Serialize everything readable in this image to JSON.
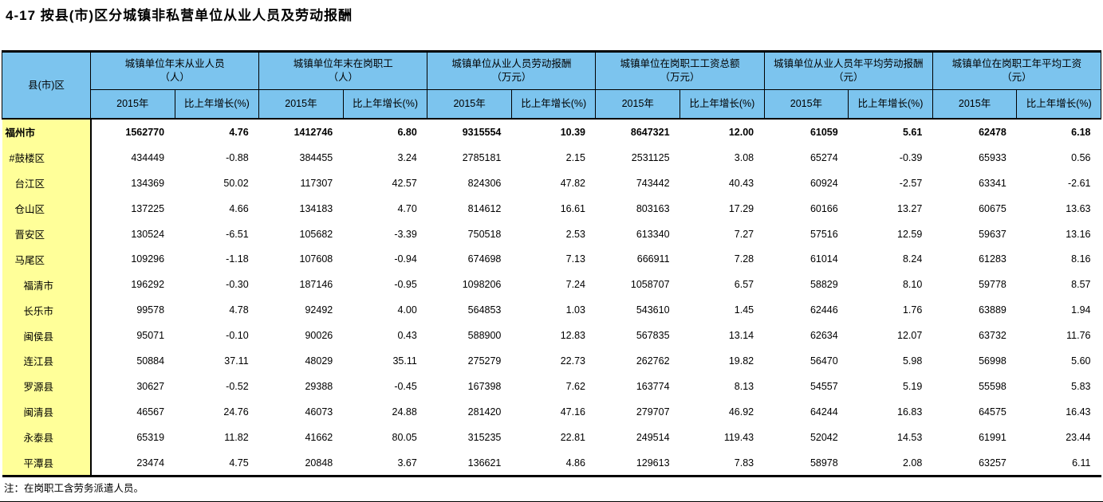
{
  "title": "4-17 按县(市)区分城镇非私营单位从业人员及劳动报酬",
  "note": "注：在岗职工含劳务派遣人员。",
  "colors": {
    "header_bg": "#7CC4EE",
    "label_bg": "#FFFF99",
    "border": "#000000"
  },
  "table": {
    "corner_header": "县(市)区",
    "groups": [
      {
        "name": "城镇单位年末从业人员",
        "unit": "（人）"
      },
      {
        "name": "城镇单位年末在岗职工",
        "unit": "（人）"
      },
      {
        "name": "城镇单位从业人员劳动报酬",
        "unit": "（万元）"
      },
      {
        "name": "城镇单位在岗职工工资总额",
        "unit": "（万元）"
      },
      {
        "name": "城镇单位从业人员年平均劳动报酬",
        "unit": "（元）"
      },
      {
        "name": "城镇单位在岗职工年平均工资",
        "unit": "（元）"
      }
    ],
    "sub_headers": [
      "2015年",
      "比上年增长(%)"
    ],
    "rows": [
      {
        "label": "福州市",
        "indent": 0,
        "bold": true,
        "values": [
          "1562770",
          "4.76",
          "1412746",
          "6.80",
          "9315554",
          "10.39",
          "8647321",
          "12.00",
          "61059",
          "5.61",
          "62478",
          "6.18"
        ]
      },
      {
        "label": "#鼓楼区",
        "indent": 1,
        "bold": false,
        "values": [
          "434449",
          "-0.88",
          "384455",
          "3.24",
          "2785181",
          "2.15",
          "2531125",
          "3.08",
          "65274",
          "-0.39",
          "65933",
          "0.56"
        ]
      },
      {
        "label": "台江区",
        "indent": 2,
        "bold": false,
        "values": [
          "134369",
          "50.02",
          "117307",
          "42.57",
          "824306",
          "47.82",
          "743442",
          "40.43",
          "60924",
          "-2.57",
          "63341",
          "-2.61"
        ]
      },
      {
        "label": "仓山区",
        "indent": 2,
        "bold": false,
        "values": [
          "137225",
          "4.66",
          "134183",
          "4.70",
          "814612",
          "16.61",
          "803163",
          "17.29",
          "60166",
          "13.27",
          "60675",
          "13.63"
        ]
      },
      {
        "label": "晋安区",
        "indent": 2,
        "bold": false,
        "values": [
          "130524",
          "-6.51",
          "105682",
          "-3.39",
          "750518",
          "2.53",
          "613340",
          "7.27",
          "57516",
          "12.59",
          "59637",
          "13.16"
        ]
      },
      {
        "label": "马尾区",
        "indent": 2,
        "bold": false,
        "values": [
          "109296",
          "-1.18",
          "107608",
          "-0.94",
          "674698",
          "7.13",
          "666911",
          "7.28",
          "61014",
          "8.24",
          "61283",
          "8.16"
        ]
      },
      {
        "label": "福清市",
        "indent": 3,
        "bold": false,
        "values": [
          "196292",
          "-0.30",
          "187146",
          "-0.95",
          "1098206",
          "7.24",
          "1058707",
          "6.57",
          "58829",
          "8.10",
          "59778",
          "8.57"
        ]
      },
      {
        "label": "长乐市",
        "indent": 3,
        "bold": false,
        "values": [
          "99578",
          "4.78",
          "92492",
          "4.00",
          "564853",
          "1.03",
          "543610",
          "1.45",
          "62446",
          "1.76",
          "63889",
          "1.94"
        ]
      },
      {
        "label": "闽侯县",
        "indent": 3,
        "bold": false,
        "values": [
          "95071",
          "-0.10",
          "90026",
          "0.43",
          "588900",
          "12.83",
          "567835",
          "13.14",
          "62634",
          "12.07",
          "63732",
          "11.76"
        ]
      },
      {
        "label": "连江县",
        "indent": 3,
        "bold": false,
        "values": [
          "50884",
          "37.11",
          "48029",
          "35.11",
          "275279",
          "22.73",
          "262762",
          "19.82",
          "56470",
          "5.98",
          "56998",
          "5.60"
        ]
      },
      {
        "label": "罗源县",
        "indent": 3,
        "bold": false,
        "values": [
          "30627",
          "-0.52",
          "29388",
          "-0.45",
          "167398",
          "7.62",
          "163774",
          "8.13",
          "54557",
          "5.19",
          "55598",
          "5.83"
        ]
      },
      {
        "label": "闽清县",
        "indent": 3,
        "bold": false,
        "values": [
          "46567",
          "24.76",
          "46073",
          "24.88",
          "281420",
          "47.16",
          "279707",
          "46.92",
          "64244",
          "16.83",
          "64575",
          "16.43"
        ]
      },
      {
        "label": "永泰县",
        "indent": 3,
        "bold": false,
        "values": [
          "65319",
          "11.82",
          "41662",
          "80.05",
          "315235",
          "22.81",
          "249514",
          "119.43",
          "52042",
          "14.53",
          "61991",
          "23.44"
        ]
      },
      {
        "label": "平潭县",
        "indent": 3,
        "bold": false,
        "values": [
          "23474",
          "4.75",
          "20848",
          "3.67",
          "136621",
          "4.86",
          "129613",
          "7.83",
          "58978",
          "2.08",
          "63257",
          "6.11"
        ]
      }
    ]
  }
}
